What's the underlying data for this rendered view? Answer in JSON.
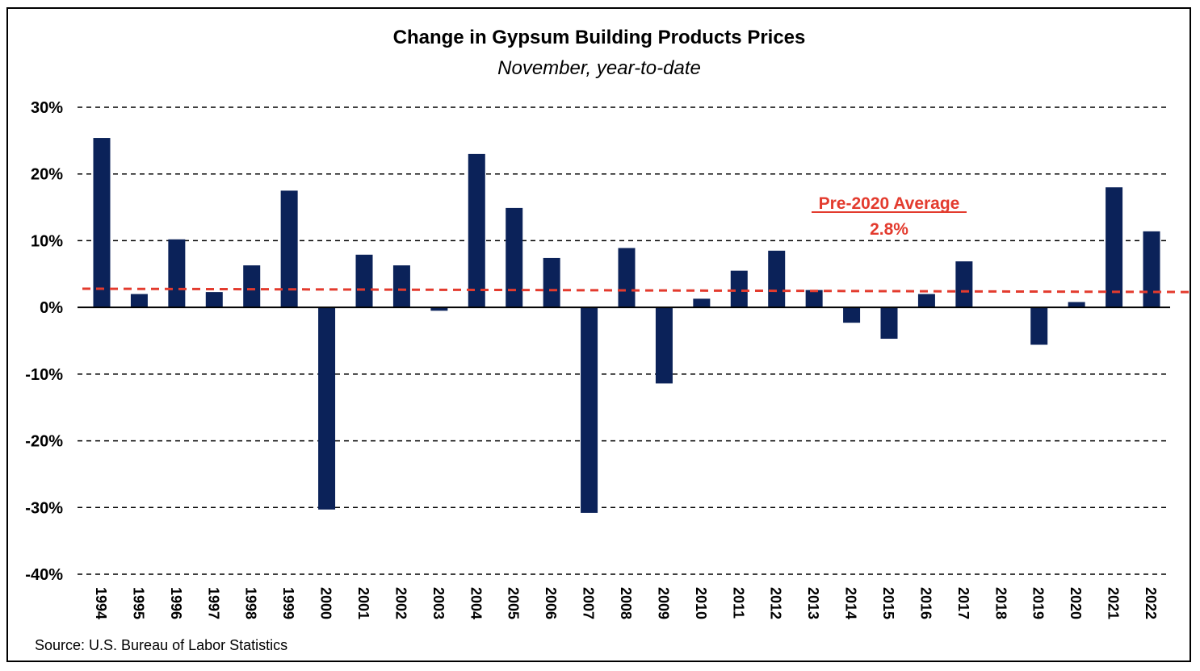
{
  "chart_data": {
    "type": "bar",
    "title": "Change in Gypsum Building Products Prices",
    "subtitle": "November, year-to-date",
    "source": "Source: U.S. Bureau of Labor Statistics",
    "categories": [
      "1994",
      "1995",
      "1996",
      "1997",
      "1998",
      "1999",
      "2000",
      "2001",
      "2002",
      "2003",
      "2004",
      "2005",
      "2006",
      "2007",
      "2008",
      "2009",
      "2010",
      "2011",
      "2012",
      "2013",
      "2014",
      "2015",
      "2016",
      "2017",
      "2018",
      "2019",
      "2020",
      "2021",
      "2022"
    ],
    "values": [
      25.4,
      2.0,
      10.2,
      2.3,
      6.3,
      17.5,
      -30.3,
      7.9,
      6.3,
      -0.5,
      23.0,
      14.9,
      7.4,
      -30.8,
      8.9,
      -11.4,
      1.3,
      5.5,
      8.5,
      2.6,
      -2.3,
      -4.7,
      2.0,
      6.9,
      0.0,
      -5.6,
      0.8,
      18.0,
      11.4
    ],
    "ylim": [
      -40,
      30
    ],
    "yticks": [
      30,
      20,
      10,
      0,
      -10,
      -20,
      -30,
      -40
    ],
    "ytick_labels": [
      "30%",
      "20%",
      "10%",
      "0%",
      "-10%",
      "-20%",
      "-30%",
      "-40%"
    ],
    "grid": true,
    "bar_color": "#0b2259",
    "average": {
      "label": "Pre-2020 Average",
      "value_label": "2.8%",
      "value": 2.8,
      "line_start": 2.8,
      "line_end": 2.3,
      "color": "#e33b2e"
    }
  }
}
